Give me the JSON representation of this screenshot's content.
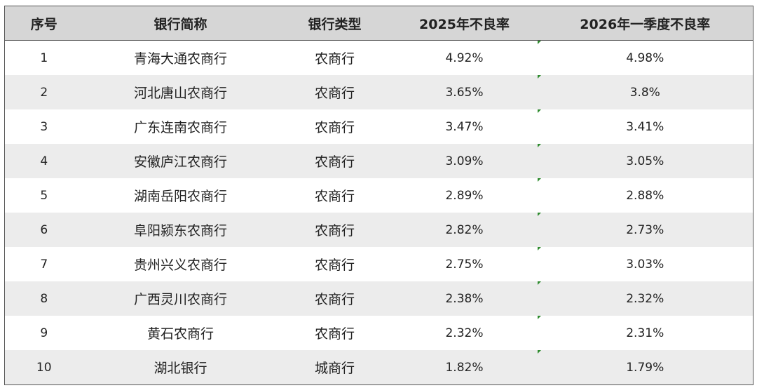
{
  "table": {
    "header": [
      "序号",
      "银行简称",
      "银行类型",
      "2025年不良率",
      "2026年一季度不良率"
    ],
    "rows": [
      [
        "1",
        "青海大通农商行",
        "农商行",
        "4.92%",
        "4.98%"
      ],
      [
        "2",
        "河北唐山农商行",
        "农商行",
        "3.65%",
        "3.8%"
      ],
      [
        "3",
        "广东连南农商行",
        "农商行",
        "3.47%",
        "3.41%"
      ],
      [
        "4",
        "安徽庐江农商行",
        "农商行",
        "3.09%",
        "3.05%"
      ],
      [
        "5",
        "湖南岳阳农商行",
        "农商行",
        "2.89%",
        "2.88%"
      ],
      [
        "6",
        "阜阳颍东农商行",
        "农商行",
        "2.82%",
        "2.73%"
      ],
      [
        "7",
        "贵州兴义农商行",
        "农商行",
        "2.75%",
        "3.03%"
      ],
      [
        "8",
        "广西灵川农商行",
        "农商行",
        "2.38%",
        "2.32%"
      ],
      [
        "9",
        "黄石农商行",
        "农商行",
        "2.32%",
        "2.31%"
      ],
      [
        "10",
        "湖北银行",
        "城商行",
        "1.82%",
        "1.79%"
      ]
    ]
  }
}
